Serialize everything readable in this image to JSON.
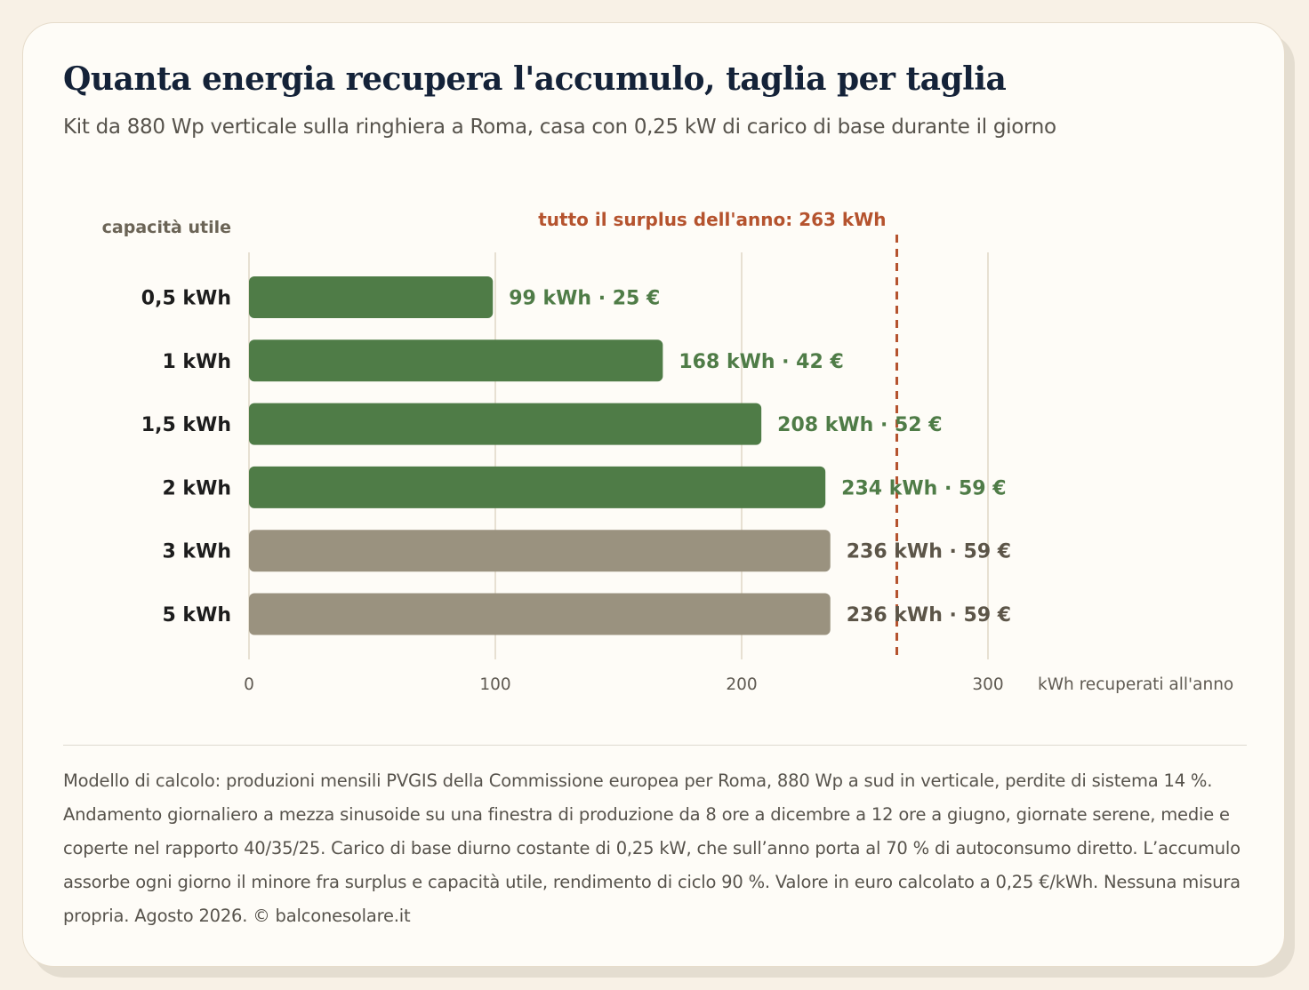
{
  "title": "Quanta energia recupera l'accumulo, taglia per taglia",
  "subtitle": "Kit da 880 Wp verticale sulla ringhiera a Roma, casa con 0,25 kW di carico di base durante il giorno",
  "footnote": "Modello di calcolo: produzioni mensili PVGIS della Commissione europea per Roma, 880 Wp a sud in verticale, perdite di sistema 14 %. Andamento giornaliero a mezza sinusoide su una finestra di produzione da 8 ore a dicembre a 12 ore a giugno, giornate serene, medie e coperte nel rapporto 40/35/25. Carico di base diurno costante di 0,25 kW, che sull’anno porta al 70 % di autoconsumo diretto. L’accumulo assorbe ogni giorno il minore fra surplus e capacità utile, rendimento di ciclo 90 %. Valore in euro calcolato a 0,25 €/kWh. Nessuna misura propria. Agosto 2026. © balconesolare.it",
  "colors": {
    "bar_effective": "#4f7c47",
    "bar_saturated": "#9a927f",
    "label_effective": "#4f7c47",
    "label_saturated": "#5c5548",
    "reference_line": "#b5532e",
    "gridline": "#e7e0d2",
    "category_label": "#1d1d1d"
  },
  "chart_data": {
    "type": "bar",
    "orientation": "horizontal",
    "ylabel": "capacità utile",
    "xlabel": "kWh recuperati all'anno",
    "categories": [
      "0,5 kWh",
      "1 kWh",
      "1,5 kWh",
      "2 kWh",
      "3 kWh",
      "5 kWh"
    ],
    "values": [
      99,
      168,
      208,
      234,
      236,
      236
    ],
    "euro": [
      25,
      42,
      52,
      59,
      59,
      59
    ],
    "value_labels": [
      "99 kWh · 25 €",
      "168 kWh · 42 €",
      "208 kWh · 52 €",
      "234 kWh · 59 €",
      "236 kWh · 59 €",
      "236 kWh · 59 €"
    ],
    "saturated": [
      false,
      false,
      false,
      false,
      true,
      true
    ],
    "xlim": [
      0,
      300
    ],
    "xticks": [
      0,
      100,
      200,
      300
    ],
    "xtick_labels": [
      "0",
      "100",
      "200",
      "300"
    ],
    "grid": true,
    "reference_line": {
      "value": 263,
      "label": "tutto il surplus dell'anno: 263 kWh"
    }
  }
}
